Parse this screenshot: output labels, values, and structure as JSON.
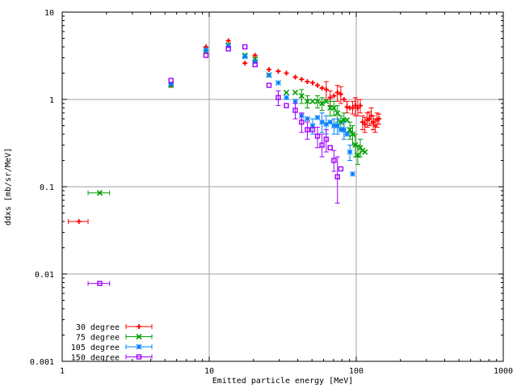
{
  "chart_data": {
    "type": "scatter",
    "title": "",
    "xlabel": "Emitted particle energy [MeV]",
    "ylabel": "ddxs [mb/sr/MeV]",
    "xscale": "log",
    "yscale": "log",
    "xlim": [
      1,
      1000
    ],
    "ylim": [
      0.001,
      10
    ],
    "grid": true,
    "legend": "bottom-left",
    "x_ticks": [
      1,
      10,
      100,
      1000
    ],
    "x_tick_labels": [
      "1",
      "10",
      "100",
      "1000"
    ],
    "y_ticks": [
      0.001,
      0.01,
      0.1,
      1,
      10
    ],
    "y_tick_labels": [
      "0.001",
      "0.01",
      "0.1",
      "1",
      "10"
    ],
    "series": [
      {
        "name": "30 degree",
        "color": "#ff0000",
        "marker": "plus",
        "points": [
          {
            "x": 1.3,
            "y": 0.04,
            "xlo": 1.1,
            "xhi": 1.5
          },
          {
            "x": 5.5,
            "y": 1.45
          },
          {
            "x": 9.5,
            "y": 4.0
          },
          {
            "x": 13.5,
            "y": 4.7
          },
          {
            "x": 17.5,
            "y": 2.6
          },
          {
            "x": 20.5,
            "y": 3.2
          },
          {
            "x": 25.5,
            "y": 2.2
          },
          {
            "x": 29.5,
            "y": 2.1
          },
          {
            "x": 33.5,
            "y": 2.0
          },
          {
            "x": 38.5,
            "y": 1.8
          },
          {
            "x": 42.5,
            "y": 1.7
          },
          {
            "x": 46.5,
            "y": 1.6
          },
          {
            "x": 50.5,
            "y": 1.55
          },
          {
            "x": 54.5,
            "y": 1.45
          },
          {
            "x": 58.5,
            "y": 1.35
          },
          {
            "x": 62.5,
            "y": 1.3,
            "ylo": 1.0,
            "yhi": 1.6
          },
          {
            "x": 66.5,
            "y": 1.05,
            "ylo": 0.85,
            "yhi": 1.25
          },
          {
            "x": 70.5,
            "y": 1.1
          },
          {
            "x": 74.5,
            "y": 1.2,
            "ylo": 0.95,
            "yhi": 1.45
          },
          {
            "x": 78.5,
            "y": 1.15,
            "ylo": 0.9,
            "yhi": 1.4
          },
          {
            "x": 82.5,
            "y": 1.0
          },
          {
            "x": 86.5,
            "y": 0.82,
            "ylo": 0.7,
            "yhi": 0.95
          },
          {
            "x": 90.5,
            "y": 0.8
          },
          {
            "x": 94.5,
            "y": 0.8,
            "ylo": 0.68,
            "yhi": 0.95
          },
          {
            "x": 98.5,
            "y": 0.85,
            "ylo": 0.65,
            "yhi": 1.05
          },
          {
            "x": 102.5,
            "y": 0.8,
            "ylo": 0.65,
            "yhi": 1.0
          },
          {
            "x": 106.5,
            "y": 0.85,
            "ylo": 0.7,
            "yhi": 1.0
          },
          {
            "x": 110.5,
            "y": 0.55,
            "ylo": 0.45,
            "yhi": 0.65
          },
          {
            "x": 114.5,
            "y": 0.52,
            "ylo": 0.42,
            "yhi": 0.62
          },
          {
            "x": 118.5,
            "y": 0.58,
            "ylo": 0.48,
            "yhi": 0.7
          },
          {
            "x": 122.5,
            "y": 0.6,
            "ylo": 0.5,
            "yhi": 0.72
          },
          {
            "x": 126.5,
            "y": 0.65,
            "ylo": 0.52,
            "yhi": 0.8
          },
          {
            "x": 130.5,
            "y": 0.55,
            "ylo": 0.45,
            "yhi": 0.65
          },
          {
            "x": 134.5,
            "y": 0.5,
            "ylo": 0.42,
            "yhi": 0.6
          },
          {
            "x": 138.5,
            "y": 0.58,
            "ylo": 0.48,
            "yhi": 0.7
          },
          {
            "x": 142.5,
            "y": 0.6,
            "ylo": 0.52,
            "yhi": 0.68
          }
        ]
      },
      {
        "name": "75 degree",
        "color": "#00a000",
        "marker": "x",
        "points": [
          {
            "x": 1.8,
            "y": 0.085,
            "xlo": 1.5,
            "xhi": 2.1
          },
          {
            "x": 5.5,
            "y": 1.45
          },
          {
            "x": 9.5,
            "y": 3.5
          },
          {
            "x": 13.5,
            "y": 4.2
          },
          {
            "x": 17.5,
            "y": 3.2
          },
          {
            "x": 20.5,
            "y": 2.9
          },
          {
            "x": 25.5,
            "y": 1.9
          },
          {
            "x": 33.5,
            "y": 1.2
          },
          {
            "x": 38.5,
            "y": 1.2
          },
          {
            "x": 42.5,
            "y": 1.1,
            "ylo": 0.9,
            "yhi": 1.3
          },
          {
            "x": 46.5,
            "y": 0.95,
            "ylo": 0.8,
            "yhi": 1.1
          },
          {
            "x": 50.5,
            "y": 0.95
          },
          {
            "x": 54.5,
            "y": 0.95,
            "ylo": 0.8,
            "yhi": 1.1
          },
          {
            "x": 58.5,
            "y": 0.9,
            "ylo": 0.75,
            "yhi": 1.05
          },
          {
            "x": 62.5,
            "y": 0.95
          },
          {
            "x": 66.5,
            "y": 0.8,
            "ylo": 0.65,
            "yhi": 0.95
          },
          {
            "x": 70.5,
            "y": 0.8,
            "ylo": 0.65,
            "yhi": 0.95
          },
          {
            "x": 74.5,
            "y": 0.7,
            "ylo": 0.55,
            "yhi": 0.85
          },
          {
            "x": 78.5,
            "y": 0.55,
            "ylo": 0.45,
            "yhi": 0.65
          },
          {
            "x": 82.5,
            "y": 0.58,
            "ylo": 0.45,
            "yhi": 0.7
          },
          {
            "x": 86.5,
            "y": 0.58
          },
          {
            "x": 90.5,
            "y": 0.45,
            "ylo": 0.35,
            "yhi": 0.55
          },
          {
            "x": 94.5,
            "y": 0.4,
            "ylo": 0.3,
            "yhi": 0.5
          },
          {
            "x": 98.5,
            "y": 0.3,
            "ylo": 0.22,
            "yhi": 0.4
          },
          {
            "x": 102.5,
            "y": 0.23,
            "ylo": 0.18,
            "yhi": 0.3
          },
          {
            "x": 106.5,
            "y": 0.28,
            "ylo": 0.22,
            "yhi": 0.35
          },
          {
            "x": 110.5,
            "y": 0.26
          },
          {
            "x": 114.5,
            "y": 0.25
          }
        ]
      },
      {
        "name": "105 degree",
        "color": "#0080ff",
        "marker": "star",
        "points": [
          {
            "x": 5.5,
            "y": 1.5
          },
          {
            "x": 9.5,
            "y": 3.7
          },
          {
            "x": 13.5,
            "y": 4.1
          },
          {
            "x": 17.5,
            "y": 3.1
          },
          {
            "x": 20.5,
            "y": 2.7
          },
          {
            "x": 25.5,
            "y": 1.9
          },
          {
            "x": 29.5,
            "y": 1.55
          },
          {
            "x": 33.5,
            "y": 1.05
          },
          {
            "x": 38.5,
            "y": 0.95
          },
          {
            "x": 42.5,
            "y": 0.65
          },
          {
            "x": 46.5,
            "y": 0.6
          },
          {
            "x": 50.5,
            "y": 0.5,
            "ylo": 0.4,
            "yhi": 0.6
          },
          {
            "x": 54.5,
            "y": 0.62
          },
          {
            "x": 58.5,
            "y": 0.55,
            "ylo": 0.42,
            "yhi": 0.7
          },
          {
            "x": 62.5,
            "y": 0.52,
            "ylo": 0.4,
            "yhi": 0.65
          },
          {
            "x": 66.5,
            "y": 0.55
          },
          {
            "x": 70.5,
            "y": 0.5,
            "ylo": 0.4,
            "yhi": 0.6
          },
          {
            "x": 74.5,
            "y": 0.5,
            "ylo": 0.4,
            "yhi": 0.6
          },
          {
            "x": 78.5,
            "y": 0.45
          },
          {
            "x": 82.5,
            "y": 0.45,
            "ylo": 0.35,
            "yhi": 0.55
          },
          {
            "x": 86.5,
            "y": 0.4
          },
          {
            "x": 90.5,
            "y": 0.25,
            "ylo": 0.2,
            "yhi": 0.3
          },
          {
            "x": 94.5,
            "y": 0.14
          }
        ]
      },
      {
        "name": "150 degree",
        "color": "#a000ff",
        "marker": "square",
        "points": [
          {
            "x": 1.8,
            "y": 0.0078,
            "xlo": 1.5,
            "xhi": 2.1
          },
          {
            "x": 5.5,
            "y": 1.65
          },
          {
            "x": 9.5,
            "y": 3.2
          },
          {
            "x": 13.5,
            "y": 3.8
          },
          {
            "x": 17.5,
            "y": 4.0
          },
          {
            "x": 20.5,
            "y": 2.5
          },
          {
            "x": 25.5,
            "y": 1.45
          },
          {
            "x": 29.5,
            "y": 1.05,
            "ylo": 0.85,
            "yhi": 1.25
          },
          {
            "x": 33.5,
            "y": 0.85
          },
          {
            "x": 38.5,
            "y": 0.75,
            "ylo": 0.6,
            "yhi": 0.9
          },
          {
            "x": 42.5,
            "y": 0.55,
            "ylo": 0.42,
            "yhi": 0.7
          },
          {
            "x": 46.5,
            "y": 0.45,
            "ylo": 0.35,
            "yhi": 0.55
          },
          {
            "x": 50.5,
            "y": 0.45
          },
          {
            "x": 54.5,
            "y": 0.38,
            "ylo": 0.28,
            "yhi": 0.48
          },
          {
            "x": 58.5,
            "y": 0.3,
            "ylo": 0.22,
            "yhi": 0.4
          },
          {
            "x": 62.5,
            "y": 0.35,
            "ylo": 0.25,
            "yhi": 0.45
          },
          {
            "x": 66.5,
            "y": 0.28
          },
          {
            "x": 70.5,
            "y": 0.2,
            "ylo": 0.15,
            "yhi": 0.26
          },
          {
            "x": 74.5,
            "y": 0.13,
            "ylo": 0.065,
            "yhi": 0.22
          },
          {
            "x": 78.5,
            "y": 0.16
          }
        ]
      }
    ]
  }
}
